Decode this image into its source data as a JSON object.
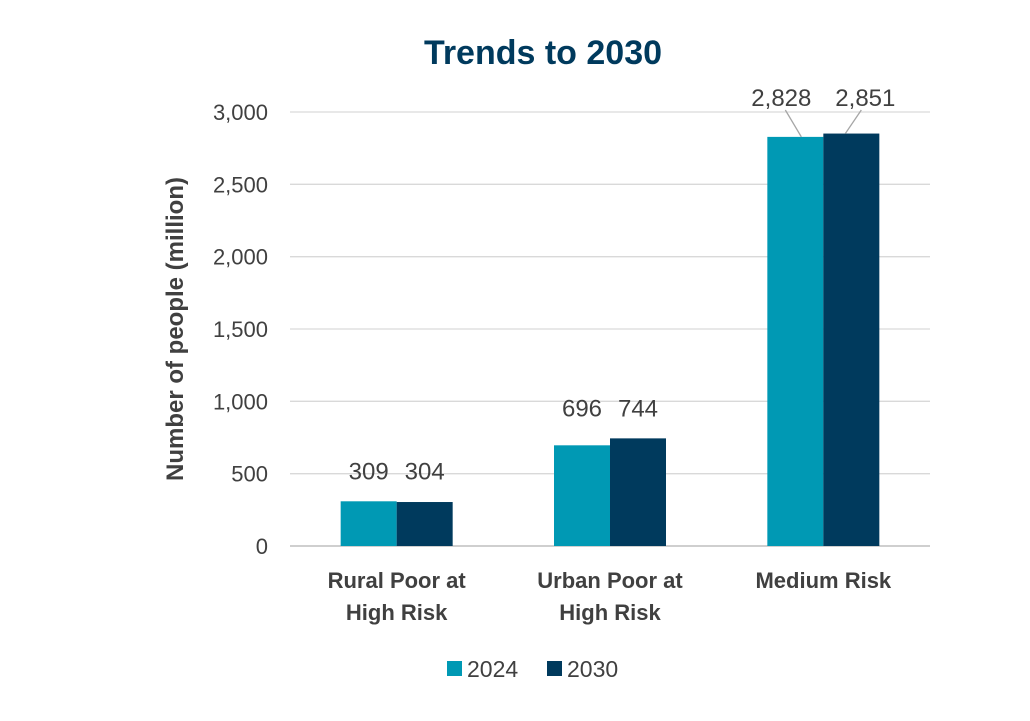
{
  "chart_data": {
    "type": "bar",
    "title": "Trends to 2030",
    "xlabel": "",
    "ylabel": "Number of people (million)",
    "categories": [
      [
        "Rural Poor at",
        "High Risk"
      ],
      [
        "Urban Poor at",
        "High Risk"
      ],
      [
        "Medium Risk"
      ]
    ],
    "series": [
      {
        "name": "2024",
        "values": [
          309,
          696,
          2828
        ],
        "labels": [
          "309",
          "696",
          "2,828"
        ],
        "color": "#0099b4"
      },
      {
        "name": "2030",
        "values": [
          304,
          744,
          2851
        ],
        "labels": [
          "304",
          "744",
          "2,851"
        ],
        "color": "#003a5d"
      }
    ],
    "ylim": [
      0,
      3000
    ],
    "yticks": [
      0,
      500,
      1000,
      1500,
      2000,
      2500,
      3000
    ],
    "ytick_labels": [
      "0",
      "500",
      "1,000",
      "1,500",
      "2,000",
      "2,500",
      "3,000"
    ],
    "grid": true,
    "legend": "bottom",
    "colors": {
      "title": "#003a5d",
      "text": "#404040",
      "grid": "#d9d9d9",
      "axis": "#bfbfbf"
    }
  }
}
